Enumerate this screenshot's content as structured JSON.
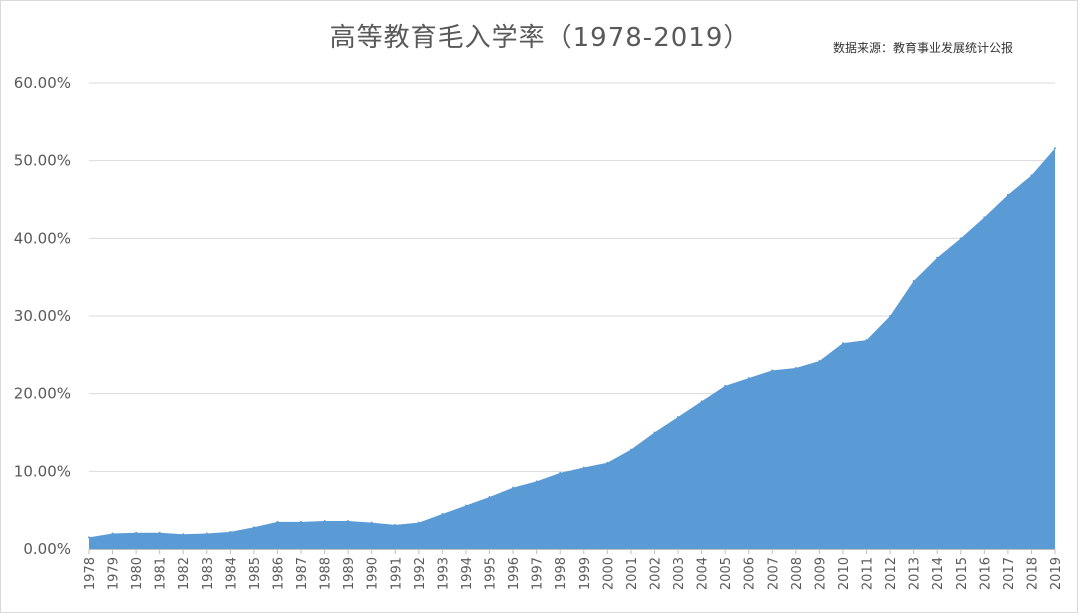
{
  "chart_data": {
    "type": "area",
    "title": "高等教育毛入学率（1978-2019）",
    "source": "数据来源：教育事业发展统计公报",
    "ylim": [
      0,
      0.6
    ],
    "y_ticks": [
      "0.00%",
      "10.00%",
      "20.00%",
      "30.00%",
      "40.00%",
      "50.00%",
      "60.00%"
    ],
    "grid": true,
    "color": "#5B9BD5",
    "categories": [
      "1978",
      "1979",
      "1980",
      "1981",
      "1982",
      "1983",
      "1984",
      "1985",
      "1986",
      "1987",
      "1988",
      "1989",
      "1990",
      "1991",
      "1992",
      "1993",
      "1994",
      "1995",
      "1996",
      "1997",
      "1998",
      "1999",
      "2000",
      "2001",
      "2002",
      "2003",
      "2004",
      "2005",
      "2006",
      "2007",
      "2008",
      "2009",
      "2010",
      "2011",
      "2012",
      "2013",
      "2014",
      "2015",
      "2016",
      "2017",
      "2018",
      "2019"
    ],
    "values": [
      0.015,
      0.02,
      0.021,
      0.021,
      0.019,
      0.02,
      0.022,
      0.028,
      0.035,
      0.035,
      0.036,
      0.036,
      0.034,
      0.031,
      0.034,
      0.045,
      0.056,
      0.067,
      0.079,
      0.087,
      0.098,
      0.105,
      0.111,
      0.128,
      0.15,
      0.17,
      0.19,
      0.21,
      0.22,
      0.23,
      0.233,
      0.242,
      0.265,
      0.269,
      0.3,
      0.345,
      0.375,
      0.4,
      0.427,
      0.456,
      0.481,
      0.516
    ]
  }
}
